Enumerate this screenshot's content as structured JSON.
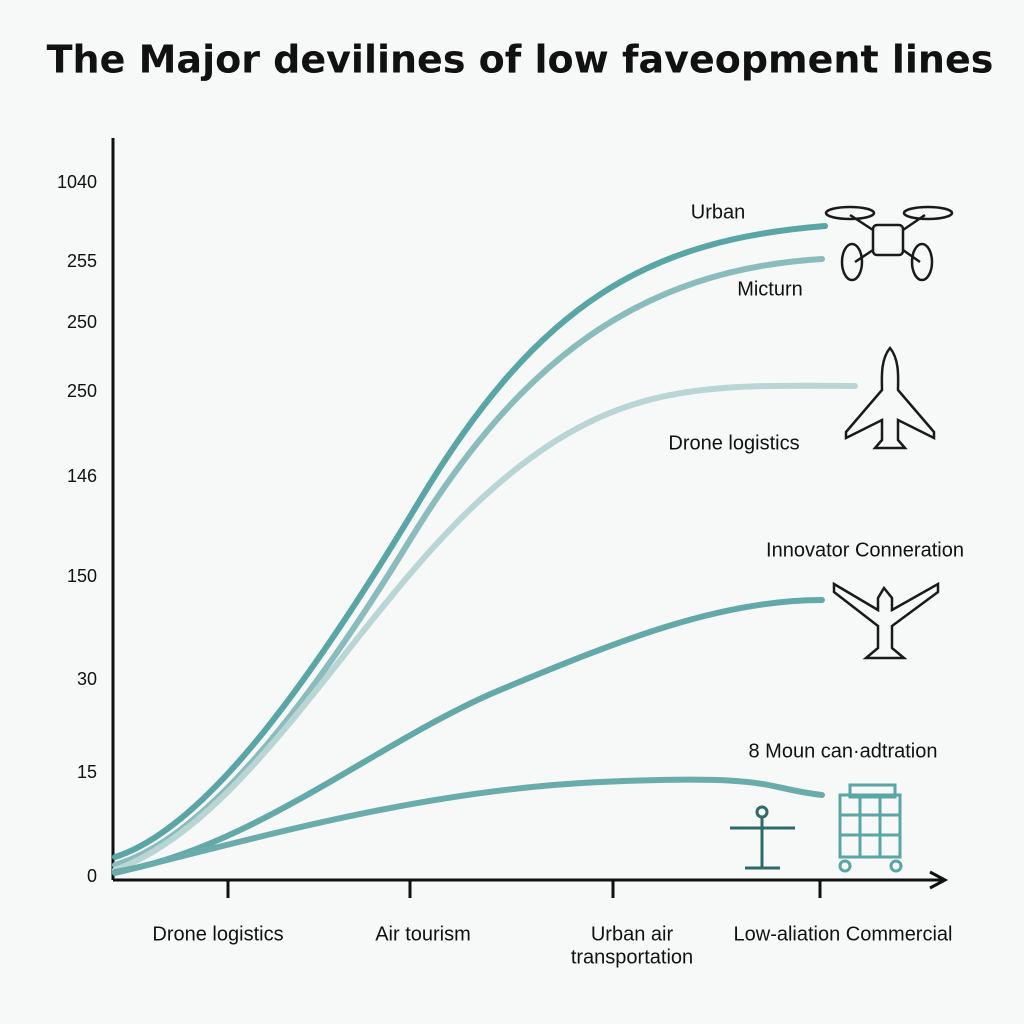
{
  "title": "The Major devilines of  low faveopment lines",
  "y_axis_labels": [
    "1040",
    "255",
    "250",
    "250",
    "146",
    "150",
    "30",
    "15",
    "0"
  ],
  "x_axis_labels": [
    [
      "Drone logistics"
    ],
    [
      "Air tourism"
    ],
    [
      "Urban air",
      "transportation"
    ],
    [
      "Low-aliation Commercial"
    ]
  ],
  "line_labels": [
    "Urban",
    "Micturn",
    "Drone logistics",
    "Innovator  Conneration",
    "8 Moun can·adtration"
  ]
}
